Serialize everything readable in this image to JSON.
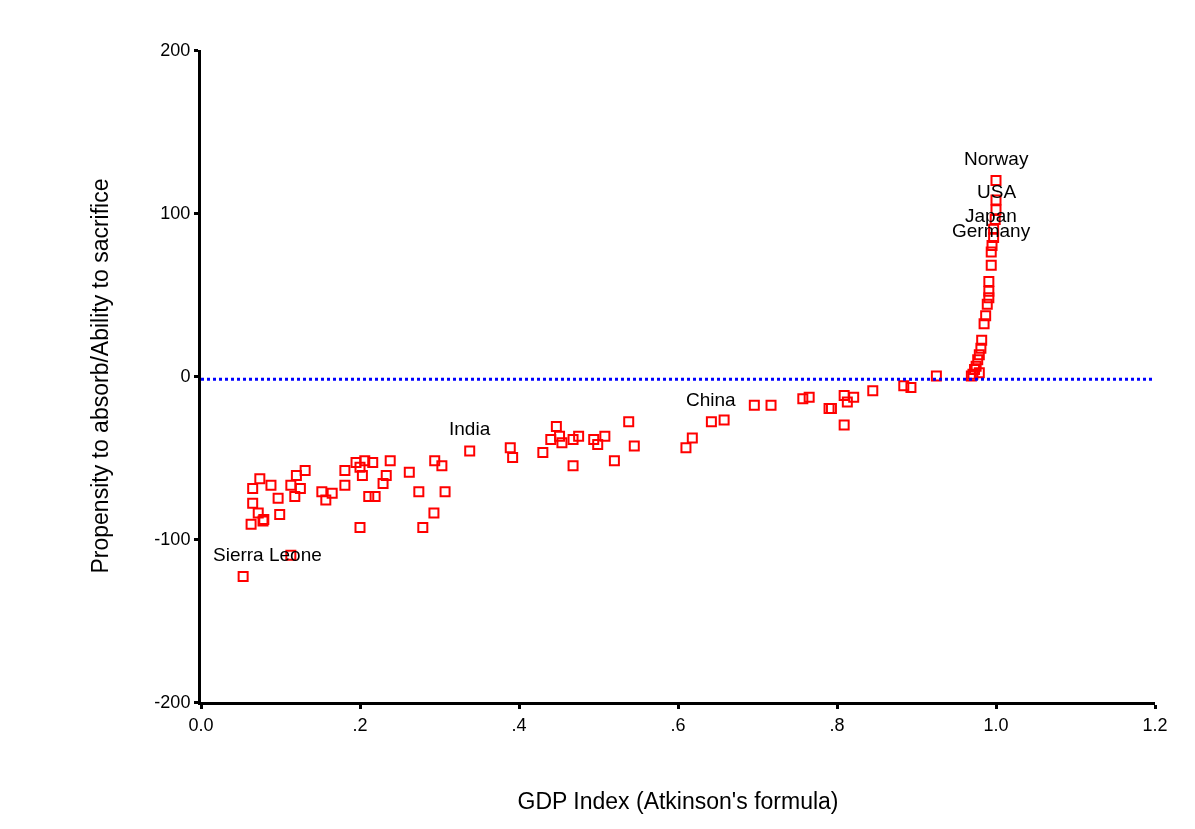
{
  "chart_data": {
    "type": "scatter",
    "xlabel": "GDP Index (Atkinson's formula)",
    "ylabel": "Propensity to absorb/Ability to sacrifice",
    "xlim": [
      0,
      1.2
    ],
    "xticks": [
      {
        "value": 0,
        "label": "0.0"
      },
      {
        "value": 0.2,
        "label": ".2"
      },
      {
        "value": 0.4,
        "label": ".4"
      },
      {
        "value": 0.6,
        "label": ".6"
      },
      {
        "value": 0.8,
        "label": ".8"
      },
      {
        "value": 1.0,
        "label": "1.0"
      },
      {
        "value": 1.2,
        "label": "1.2"
      }
    ],
    "ylim": [
      -200,
      200
    ],
    "yticks": [
      -200,
      -100,
      0,
      100,
      200
    ],
    "grid": false,
    "legend": false,
    "marker": "square",
    "series": [
      {
        "color": "#ff0000",
        "x": [
          0.053,
          0.113,
          0.063,
          0.078,
          0.065,
          0.074,
          0.088,
          0.065,
          0.072,
          0.079,
          0.099,
          0.097,
          0.113,
          0.118,
          0.12,
          0.131,
          0.125,
          0.152,
          0.157,
          0.165,
          0.181,
          0.181,
          0.195,
          0.2,
          0.206,
          0.203,
          0.2,
          0.211,
          0.219,
          0.216,
          0.229,
          0.233,
          0.238,
          0.262,
          0.274,
          0.279,
          0.293,
          0.294,
          0.303,
          0.307,
          0.338,
          0.389,
          0.392,
          0.43,
          0.447,
          0.44,
          0.451,
          0.454,
          0.468,
          0.475,
          0.468,
          0.494,
          0.499,
          0.508,
          0.52,
          0.538,
          0.545,
          0.61,
          0.618,
          0.642,
          0.658,
          0.696,
          0.717,
          0.757,
          0.765,
          0.79,
          0.793,
          0.809,
          0.813,
          0.821,
          0.809,
          0.845,
          0.884,
          0.893,
          0.925,
          1.0,
          1.0,
          1.0,
          0.999,
          0.997,
          0.997,
          0.995,
          0.994,
          0.994,
          0.991,
          0.991,
          0.991,
          0.989,
          0.987,
          0.985,
          0.982,
          0.981,
          0.979,
          0.977,
          0.975,
          0.973,
          0.971,
          0.969,
          0.979
        ],
        "values": [
          -123,
          -110,
          -91,
          -89,
          -69,
          -63,
          -67,
          -78,
          -84,
          -88,
          -85,
          -75,
          -67,
          -74,
          -61,
          -58,
          -69,
          -71,
          -76,
          -72,
          -67,
          -58,
          -53,
          -56,
          -52,
          -61,
          -93,
          -74,
          -74,
          -53,
          -66,
          -61,
          -52,
          -59,
          -71,
          -93,
          -84,
          -52,
          -55,
          -71,
          -46,
          -44,
          -50,
          -47,
          -31,
          -39,
          -37,
          -41,
          -39,
          -37,
          -55,
          -39,
          -42,
          -37,
          -52,
          -28,
          -43,
          -44,
          -38,
          -28,
          -27,
          -18,
          -18,
          -14,
          -13,
          -20,
          -20,
          -12,
          -16,
          -13,
          -30,
          -9,
          -6,
          -7,
          0,
          120,
          108,
          102,
          96,
          90,
          85,
          80,
          76,
          68,
          58,
          52,
          48,
          44,
          37,
          32,
          22,
          17,
          13,
          10,
          6,
          4,
          1,
          0,
          2
        ]
      }
    ],
    "ref_lines": [
      {
        "axis": "y",
        "value": -2,
        "color": "#0000ff",
        "line_style": "dotted"
      }
    ],
    "annotations": [
      {
        "text": "Norway",
        "x": 1.0,
        "y": 120
      },
      {
        "text": "USA",
        "x": 1.0,
        "y": 100
      },
      {
        "text": "Japan",
        "x": 0.994,
        "y": 85
      },
      {
        "text": "Germany",
        "x": 0.994,
        "y": 76
      },
      {
        "text": "India",
        "x": 0.338,
        "y": -46
      },
      {
        "text": "China",
        "x": 0.642,
        "y": -28
      },
      {
        "text": "Sierra Leone",
        "x": 0.053,
        "y": -123
      }
    ]
  }
}
